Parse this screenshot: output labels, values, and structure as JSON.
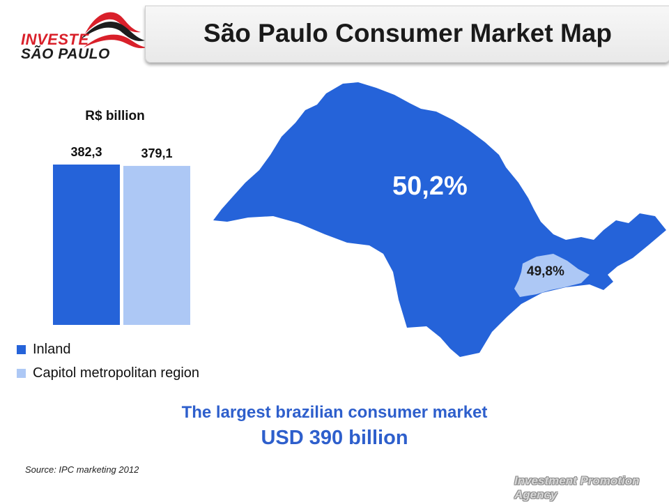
{
  "header": {
    "title": "São Paulo Consumer Market Map",
    "logo_line1": "INVESTE",
    "logo_line2": "SÃO PAULO"
  },
  "colors": {
    "inland": "#2563d9",
    "capital": "#adc8f5",
    "accent_text": "#2e5fcc",
    "logo_red": "#d9202a"
  },
  "chart_data": {
    "type": "bar",
    "title": "R$ billion",
    "categories": [
      "Inland",
      "Capitol metropolitan region"
    ],
    "values": [
      382.3,
      379.1
    ],
    "value_labels": [
      "382,3",
      "379,1"
    ],
    "legend": "bottom-left"
  },
  "map": {
    "inland_share": "50,2%",
    "capital_share": "49,8%"
  },
  "headline": {
    "line1": "The largest brazilian consumer market",
    "line2": "USD 390 billion"
  },
  "footer": {
    "source": "Source: IPC marketing 2012",
    "agency": "Investment Promotion Agency"
  }
}
